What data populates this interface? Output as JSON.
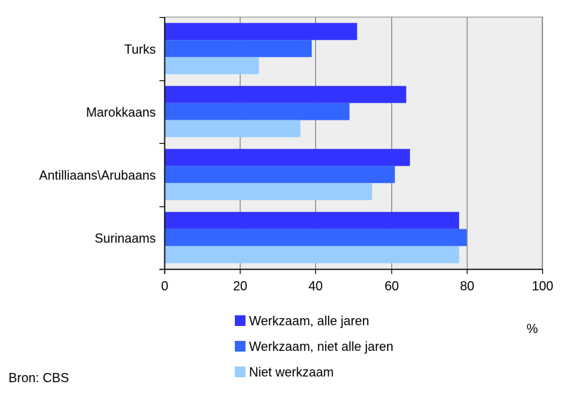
{
  "chart_data": {
    "type": "bar",
    "orientation": "horizontal",
    "categories": [
      "Turks",
      "Marokkaans",
      "Antilliaans\\Arubaans",
      "Surinaams"
    ],
    "series": [
      {
        "name": "Werkzaam, alle jaren",
        "color": "#3333ff",
        "values": [
          51,
          64,
          65,
          78
        ]
      },
      {
        "name": "Werkzaam, niet alle jaren",
        "color": "#3366ff",
        "values": [
          39,
          49,
          61,
          80
        ]
      },
      {
        "name": "Niet werkzaam",
        "color": "#99ccff",
        "values": [
          25,
          36,
          55,
          78
        ]
      }
    ],
    "xlim": [
      0,
      100
    ],
    "xticks": [
      0,
      20,
      40,
      60,
      80,
      100
    ],
    "xlabel": "%",
    "grid": true,
    "legend_position": "bottom"
  },
  "source": "Bron: CBS",
  "colors": {
    "plot_background": "#eeeeee",
    "grid_line": "#808080",
    "axis_line": "#000000"
  }
}
